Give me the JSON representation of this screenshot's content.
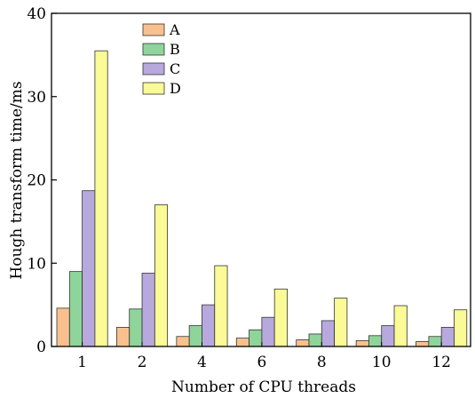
{
  "chart_data": {
    "type": "bar",
    "title": "",
    "xlabel": "Number of CPU threads",
    "ylabel": "Hough transform time/ms",
    "ylim": [
      0,
      40
    ],
    "yticks": [
      0,
      10,
      20,
      30,
      40
    ],
    "categories": [
      "1",
      "2",
      "4",
      "6",
      "8",
      "10",
      "12"
    ],
    "legend_position": "top-left",
    "grid": false,
    "series": [
      {
        "name": "A",
        "color": "#f9c08f",
        "values": [
          4.6,
          2.3,
          1.2,
          1.0,
          0.8,
          0.7,
          0.6
        ]
      },
      {
        "name": "B",
        "color": "#8fd49a",
        "values": [
          9.0,
          4.5,
          2.5,
          2.0,
          1.5,
          1.3,
          1.2
        ]
      },
      {
        "name": "C",
        "color": "#b7a8dd",
        "values": [
          18.7,
          8.8,
          5.0,
          3.5,
          3.1,
          2.5,
          2.3
        ]
      },
      {
        "name": "D",
        "color": "#fafa96",
        "values": [
          35.5,
          17.0,
          9.7,
          6.9,
          5.8,
          4.9,
          4.4
        ]
      }
    ]
  }
}
